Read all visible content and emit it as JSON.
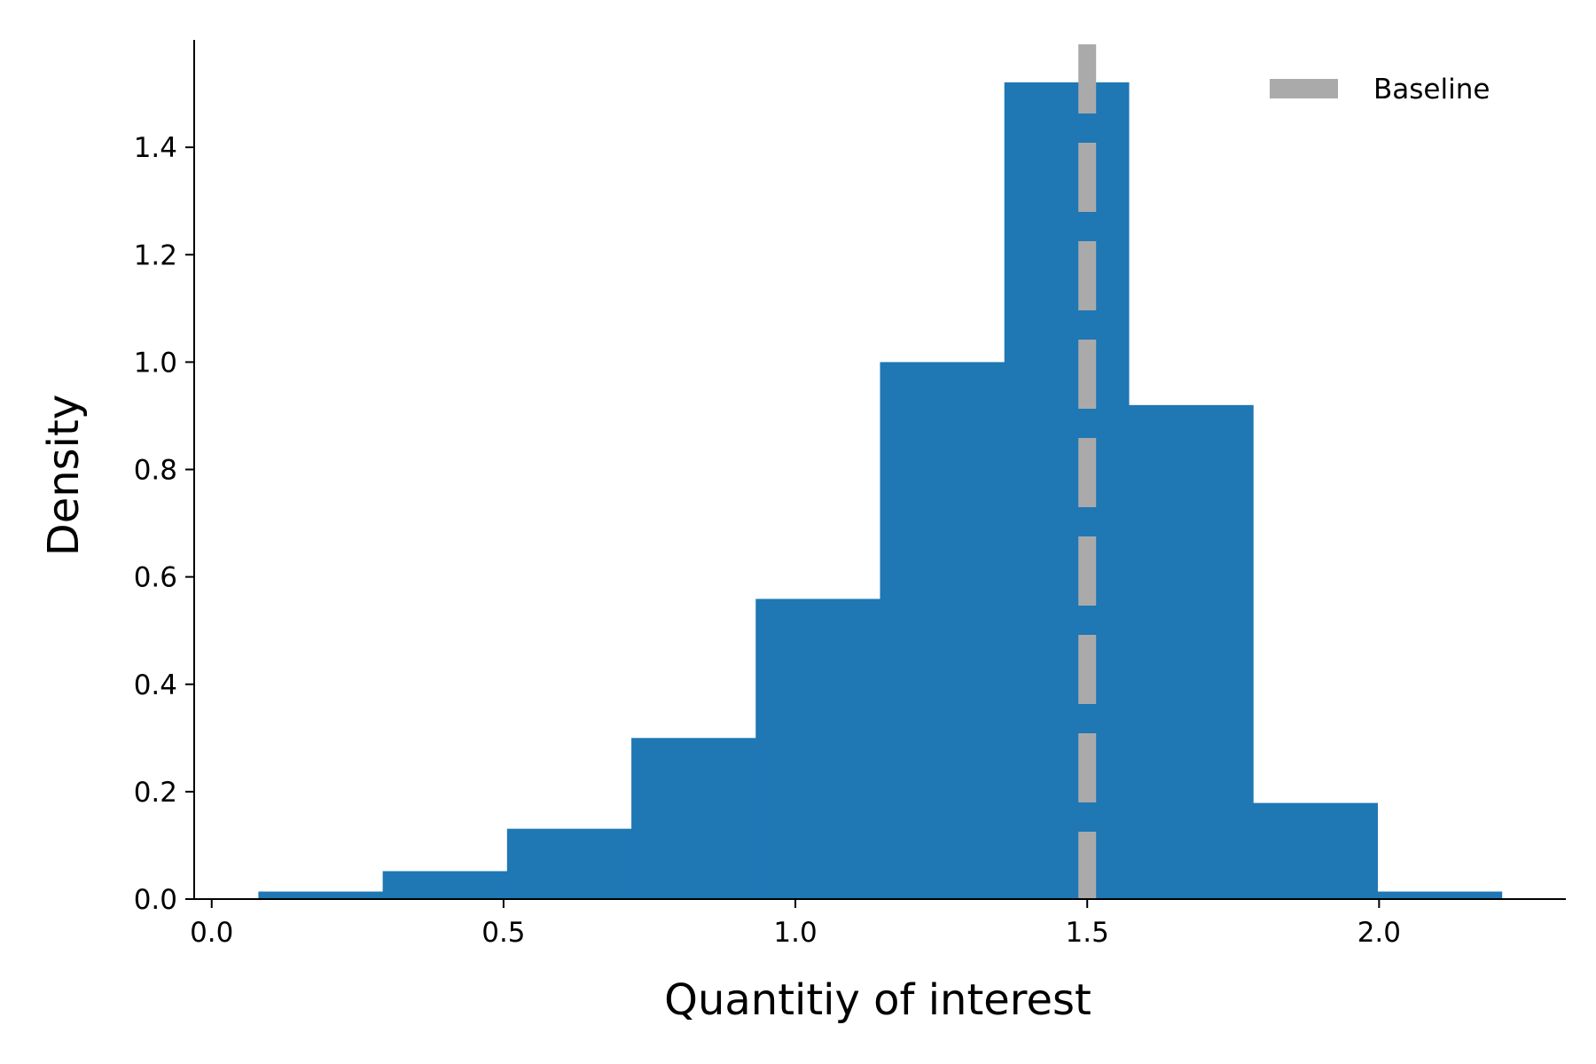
{
  "chart_data": {
    "type": "bar",
    "subtype": "histogram",
    "title": "",
    "xlabel": "Quantitiy of interest",
    "ylabel": "Density",
    "xlim": [
      -0.03,
      2.32
    ],
    "ylim": [
      0.0,
      1.6
    ],
    "x_ticks": [
      "0.0",
      "0.5",
      "1.0",
      "1.5",
      "2.0"
    ],
    "y_ticks": [
      "0.0",
      "0.2",
      "0.4",
      "0.6",
      "0.8",
      "1.0",
      "1.2",
      "1.4"
    ],
    "bin_edges": [
      0.08,
      0.293,
      0.506,
      0.719,
      0.932,
      1.145,
      1.358,
      1.571,
      1.784,
      1.997,
      2.21
    ],
    "values": [
      0.014,
      0.052,
      0.131,
      0.3,
      0.559,
      1.0,
      1.521,
      0.92,
      0.179,
      0.014
    ],
    "bar_color": "#1f77b4",
    "reference_line": {
      "name": "Baseline",
      "x": 1.5,
      "style": "dashed",
      "color": "#aaaaaa"
    },
    "legend": {
      "position": "upper right",
      "frame": false,
      "entries": [
        "Baseline"
      ]
    },
    "grid": false,
    "spines": [
      "left",
      "bottom"
    ]
  }
}
